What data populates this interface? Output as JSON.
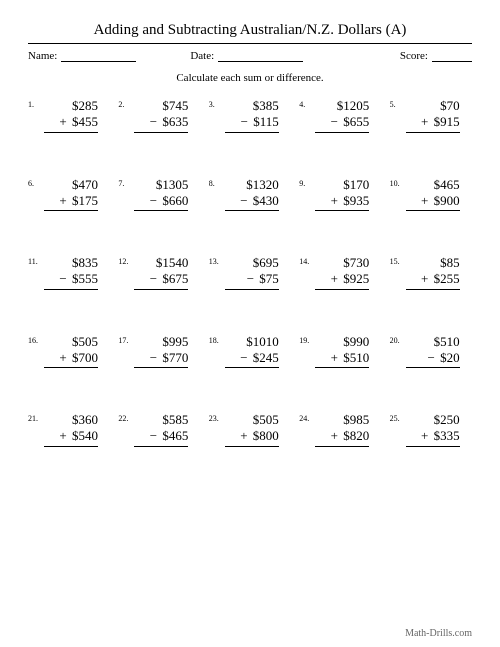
{
  "title": "Adding and Subtracting Australian/N.Z. Dollars (A)",
  "meta": {
    "name_label": "Name:",
    "date_label": "Date:",
    "score_label": "Score:"
  },
  "instruction": "Calculate each sum or difference.",
  "currency": "$",
  "footer": "Math-Drills.com",
  "problems": [
    {
      "n": "1.",
      "a": "285",
      "op": "+",
      "b": "455"
    },
    {
      "n": "2.",
      "a": "745",
      "op": "−",
      "b": "635"
    },
    {
      "n": "3.",
      "a": "385",
      "op": "−",
      "b": "115"
    },
    {
      "n": "4.",
      "a": "1205",
      "op": "−",
      "b": "655"
    },
    {
      "n": "5.",
      "a": "70",
      "op": "+",
      "b": "915"
    },
    {
      "n": "6.",
      "a": "470",
      "op": "+",
      "b": "175"
    },
    {
      "n": "7.",
      "a": "1305",
      "op": "−",
      "b": "660"
    },
    {
      "n": "8.",
      "a": "1320",
      "op": "−",
      "b": "430"
    },
    {
      "n": "9.",
      "a": "170",
      "op": "+",
      "b": "935"
    },
    {
      "n": "10.",
      "a": "465",
      "op": "+",
      "b": "900"
    },
    {
      "n": "11.",
      "a": "835",
      "op": "−",
      "b": "555"
    },
    {
      "n": "12.",
      "a": "1540",
      "op": "−",
      "b": "675"
    },
    {
      "n": "13.",
      "a": "695",
      "op": "−",
      "b": "75"
    },
    {
      "n": "14.",
      "a": "730",
      "op": "+",
      "b": "925"
    },
    {
      "n": "15.",
      "a": "85",
      "op": "+",
      "b": "255"
    },
    {
      "n": "16.",
      "a": "505",
      "op": "+",
      "b": "700"
    },
    {
      "n": "17.",
      "a": "995",
      "op": "−",
      "b": "770"
    },
    {
      "n": "18.",
      "a": "1010",
      "op": "−",
      "b": "245"
    },
    {
      "n": "19.",
      "a": "990",
      "op": "+",
      "b": "510"
    },
    {
      "n": "20.",
      "a": "510",
      "op": "−",
      "b": "20"
    },
    {
      "n": "21.",
      "a": "360",
      "op": "+",
      "b": "540"
    },
    {
      "n": "22.",
      "a": "585",
      "op": "−",
      "b": "465"
    },
    {
      "n": "23.",
      "a": "505",
      "op": "+",
      "b": "800"
    },
    {
      "n": "24.",
      "a": "985",
      "op": "+",
      "b": "820"
    },
    {
      "n": "25.",
      "a": "250",
      "op": "+",
      "b": "335"
    }
  ],
  "style": {
    "page_bg": "#ffffff",
    "text_color": "#000000",
    "footer_color": "#666666",
    "title_fontsize": 15,
    "body_fontsize": 13,
    "num_fontsize": 8,
    "meta_fontsize": 11,
    "name_line_w": 75,
    "date_line_w": 85,
    "score_line_w": 40
  }
}
